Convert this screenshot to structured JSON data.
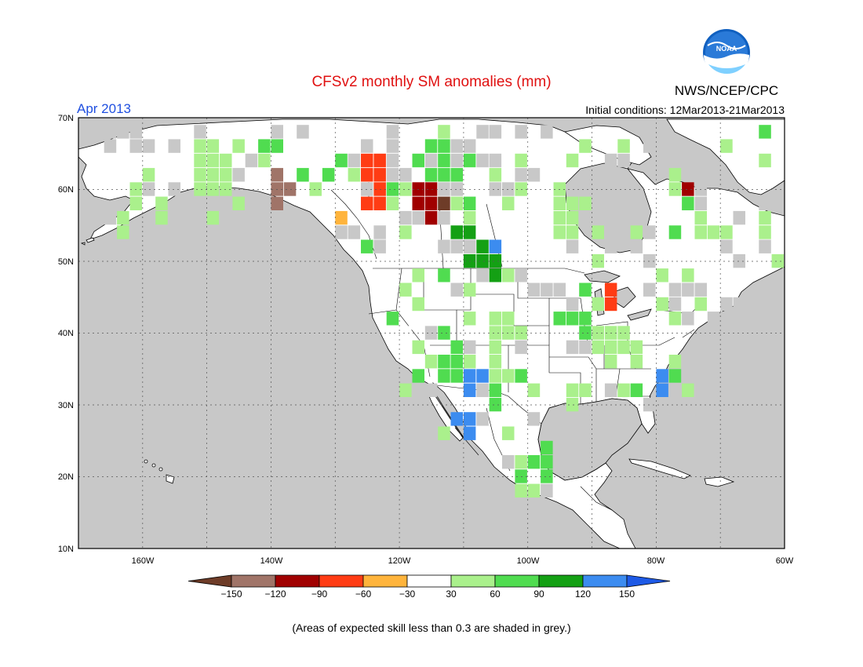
{
  "title": "CFSv2 monthly SM anomalies (mm)",
  "valid_month": "Apr 2013",
  "initial_conditions": "Initial conditions: 12Mar2013-21Mar2013",
  "agency": "NWS/NCEP/CPC",
  "logo_text": "NOAA",
  "footnote": "(Areas of expected skill less than 0.3 are shaded in grey.)",
  "map": {
    "projection": "lat-lon",
    "lon_range": [
      -170,
      -60
    ],
    "lat_range": [
      10,
      70
    ],
    "lat_tick_labels": [
      "70N",
      "60N",
      "50N",
      "40N",
      "30N",
      "20N",
      "10N"
    ],
    "lon_tick_labels": [
      "160W",
      "140W",
      "120W",
      "100W",
      "80W",
      "60W"
    ],
    "ocean_color": "#c8c8c8",
    "land_color": "#ffffff",
    "low_skill_color": "#c8c8c8"
  },
  "legend": {
    "labels": [
      "-150",
      "-120",
      "-90",
      "-60",
      "-30",
      "30",
      "60",
      "90",
      "120",
      "150"
    ],
    "colors": [
      "#6e3c28",
      "#a07468",
      "#a00000",
      "#ff3c14",
      "#ffb43c",
      "#ffffff",
      "#aaf08c",
      "#50dc50",
      "#14a014",
      "#3c8cf0",
      "#1e5ae6"
    ]
  }
}
